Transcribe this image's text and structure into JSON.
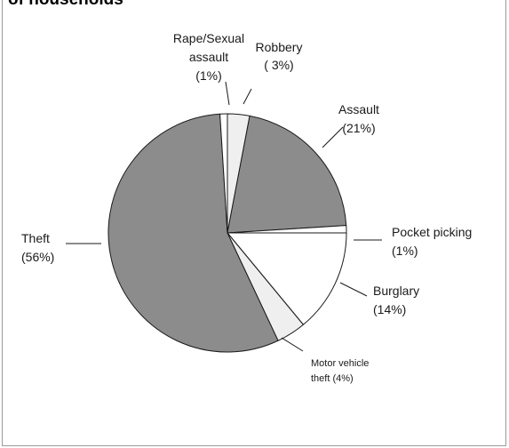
{
  "chart_data": {
    "type": "pie",
    "title": "of households",
    "start_angle_deg": 90,
    "direction": "clockwise",
    "slices": [
      {
        "label_lines": [
          "Robbery",
          "( 3%)"
        ],
        "value": 3,
        "color": "#efefef"
      },
      {
        "label_lines": [
          "Assault",
          "(21%)"
        ],
        "value": 21,
        "color": "#8c8c8c"
      },
      {
        "label_lines": [
          "Pocket picking",
          "(1%)"
        ],
        "value": 1,
        "color": "#ffffff"
      },
      {
        "label_lines": [
          "Burglary",
          "(14%)"
        ],
        "value": 14,
        "color": "#ffffff"
      },
      {
        "label_lines": [
          "Motor vehicle",
          "theft  (4%)"
        ],
        "value": 4,
        "color": "#efefef"
      },
      {
        "label_lines": [
          "Theft",
          "(56%)"
        ],
        "value": 56,
        "color": "#8c8c8c"
      },
      {
        "label_lines": [
          "Rape/Sexual",
          "assault",
          "(1%)"
        ],
        "value": 1,
        "color": "#ffffff"
      }
    ]
  }
}
